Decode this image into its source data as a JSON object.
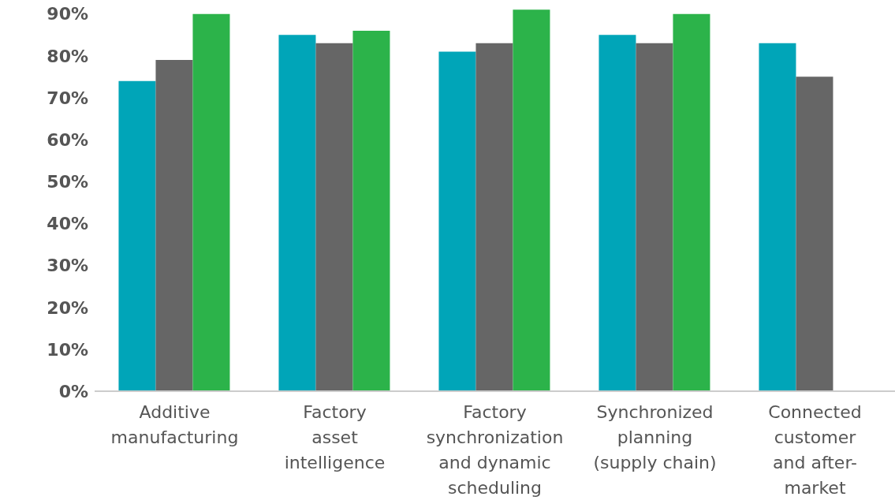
{
  "chart_data": {
    "type": "bar",
    "categories": [
      "Additive\nmanufacturing",
      "Factory\nasset\nintelligence",
      "Factory\nsynchronization\nand dynamic\nscheduling",
      "Synchronized\nplanning\n(supply chain)",
      "Connected\ncustomer\nand after-\nmarket"
    ],
    "series": [
      {
        "color": "#00a5b8",
        "values": [
          74,
          85,
          81,
          85,
          83
        ]
      },
      {
        "color": "#666666",
        "values": [
          79,
          83,
          83,
          83,
          75
        ]
      },
      {
        "color": "#2cb34a",
        "values": [
          90,
          86,
          91,
          90,
          null
        ]
      }
    ],
    "ylim": [
      0,
      92
    ],
    "yticks": [
      {
        "value": 0,
        "label": "0%"
      },
      {
        "value": 10,
        "label": "10%"
      },
      {
        "value": 20,
        "label": "20%"
      },
      {
        "value": 30,
        "label": "30%"
      },
      {
        "value": 40,
        "label": "40%"
      },
      {
        "value": 50,
        "label": "50%"
      },
      {
        "value": 60,
        "label": "60%"
      },
      {
        "value": 70,
        "label": "70%"
      },
      {
        "value": 80,
        "label": "80%"
      },
      {
        "value": 90,
        "label": "90%"
      }
    ],
    "grid": false,
    "legend": false
  }
}
